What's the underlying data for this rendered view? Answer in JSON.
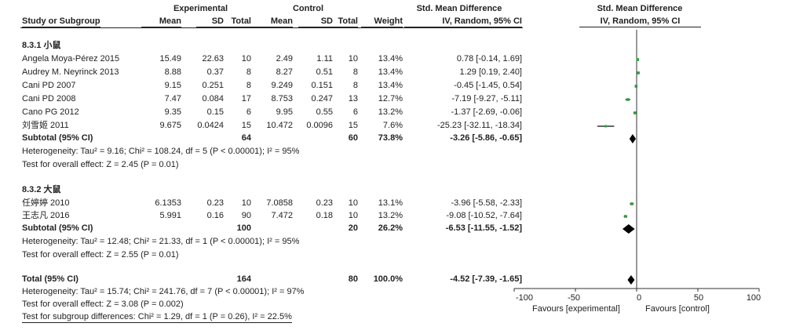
{
  "header": {
    "group_experimental": "Experimental",
    "group_control": "Control",
    "smd_left": "Std. Mean Difference",
    "smd_right": "Std. Mean Difference",
    "study": "Study or Subgroup",
    "mean1": "Mean",
    "sd1": "SD",
    "total1": "Total",
    "mean2": "Mean",
    "sd2": "SD",
    "total2": "Total",
    "weight": "Weight",
    "method_left": "IV, Random, 95% CI",
    "method_right": "IV, Random, 95% CI"
  },
  "groups": [
    {
      "label": "8.3.1 小鼠",
      "studies": [
        {
          "name": "Angela Moya-Pérez 2015",
          "mean1": "15.49",
          "sd1": "22.63",
          "n1": "10",
          "mean2": "2.49",
          "sd2": "1.11",
          "n2": "10",
          "weight": "13.4%",
          "ci": "0.78 [-0.14, 1.69]"
        },
        {
          "name": "Audrey M. Neyrinck 2013",
          "mean1": "8.88",
          "sd1": "0.37",
          "n1": "8",
          "mean2": "8.27",
          "sd2": "0.51",
          "n2": "8",
          "weight": "13.4%",
          "ci": "1.29 [0.19, 2.40]"
        },
        {
          "name": "Cani PD 2007",
          "mean1": "9.15",
          "sd1": "0.251",
          "n1": "8",
          "mean2": "9.249",
          "sd2": "0.151",
          "n2": "8",
          "weight": "13.4%",
          "ci": "-0.45 [-1.45, 0.54]"
        },
        {
          "name": "Cani PD 2008",
          "mean1": "7.47",
          "sd1": "0.084",
          "n1": "17",
          "mean2": "8.753",
          "sd2": "0.247",
          "n2": "13",
          "weight": "12.7%",
          "ci": "-7.19 [-9.27, -5.11]"
        },
        {
          "name": "Cano PG 2012",
          "mean1": "9.35",
          "sd1": "0.15",
          "n1": "6",
          "mean2": "9.95",
          "sd2": "0.55",
          "n2": "6",
          "weight": "13.2%",
          "ci": "-1.37 [-2.69, -0.06]"
        },
        {
          "name": "刘雪姬 2011",
          "mean1": "9.675",
          "sd1": "0.0424",
          "n1": "15",
          "mean2": "10.472",
          "sd2": "0.0096",
          "n2": "15",
          "weight": "7.6%",
          "ci": "-25.23 [-32.11, -18.34]"
        }
      ],
      "subtotal": {
        "label": "Subtotal (95% CI)",
        "n1": "64",
        "n2": "60",
        "weight": "73.8%",
        "ci": "-3.26 [-5.86, -0.65]"
      },
      "heterogeneity": "Heterogeneity: Tau² = 9.16; Chi² = 108.24, df = 5 (P < 0.00001); I² = 95%",
      "overall": "Test for overall effect: Z = 2.45 (P = 0.01)"
    },
    {
      "label": "8.3.2 大鼠",
      "studies": [
        {
          "name": "任婷婷 2010",
          "mean1": "6.1353",
          "sd1": "0.23",
          "n1": "10",
          "mean2": "7.0858",
          "sd2": "0.23",
          "n2": "10",
          "weight": "13.1%",
          "ci": "-3.96 [-5.58, -2.33]"
        },
        {
          "name": "王志凡 2016",
          "mean1": "5.991",
          "sd1": "0.16",
          "n1": "90",
          "mean2": "7.472",
          "sd2": "0.18",
          "n2": "10",
          "weight": "13.2%",
          "ci": "-9.08 [-10.52, -7.64]"
        }
      ],
      "subtotal": {
        "label": "Subtotal (95% CI)",
        "n1": "100",
        "n2": "20",
        "weight": "26.2%",
        "ci": "-6.53 [-11.55, -1.52]"
      },
      "heterogeneity": "Heterogeneity: Tau² = 12.48; Chi² = 21.33, df = 1 (P < 0.00001); I² = 95%",
      "overall": "Test for overall effect: Z = 2.55 (P = 0.01)"
    }
  ],
  "total": {
    "label": "Total (95% CI)",
    "n1": "164",
    "n2": "80",
    "weight": "100.0%",
    "ci": "-4.52 [-7.39, -1.65]"
  },
  "footer": {
    "heterogeneity": "Heterogeneity: Tau² = 15.74; Chi² = 241.76, df = 7 (P < 0.00001); I² = 97%",
    "overall": "Test for overall effect: Z = 3.08 (P = 0.002)",
    "subgroup": "Test for subgroup differences: Chi² = 1.29, df = 1 (P = 0.26), I² = 22.5%"
  },
  "axis": {
    "tick_labels": [
      "-100",
      "-50",
      "0",
      "50",
      "100"
    ],
    "favours_left": "Favours [experimental]",
    "favours_right": "Favours [control]"
  },
  "chart_data": {
    "type": "forest",
    "xlim": [
      -100,
      100
    ],
    "ticks": [
      -100,
      -50,
      0,
      50,
      100
    ],
    "study_color": "#2e9e3c",
    "diamond_color": "#000000",
    "studies": [
      {
        "name": "Angela Moya-Pérez 2015",
        "est": 0.78,
        "lo": -0.14,
        "hi": 1.69,
        "weight": 13.4
      },
      {
        "name": "Audrey M. Neyrinck 2013",
        "est": 1.29,
        "lo": 0.19,
        "hi": 2.4,
        "weight": 13.4
      },
      {
        "name": "Cani PD 2007",
        "est": -0.45,
        "lo": -1.45,
        "hi": 0.54,
        "weight": 13.4
      },
      {
        "name": "Cani PD 2008",
        "est": -7.19,
        "lo": -9.27,
        "hi": -5.11,
        "weight": 12.7
      },
      {
        "name": "Cano PG 2012",
        "est": -1.37,
        "lo": -2.69,
        "hi": -0.06,
        "weight": 13.2
      },
      {
        "name": "刘雪姬 2011",
        "est": -25.23,
        "lo": -32.11,
        "hi": -18.34,
        "weight": 7.6
      },
      {
        "name": "任婷婷 2010",
        "est": -3.96,
        "lo": -5.58,
        "hi": -2.33,
        "weight": 13.1
      },
      {
        "name": "王志凡 2016",
        "est": -9.08,
        "lo": -10.52,
        "hi": -7.64,
        "weight": 13.2
      }
    ],
    "summaries": [
      {
        "name": "Subtotal 8.3.1",
        "est": -3.26,
        "lo": -5.86,
        "hi": -0.65
      },
      {
        "name": "Subtotal 8.3.2",
        "est": -6.53,
        "lo": -11.55,
        "hi": -1.52
      },
      {
        "name": "Total",
        "est": -4.52,
        "lo": -7.39,
        "hi": -1.65
      }
    ]
  }
}
